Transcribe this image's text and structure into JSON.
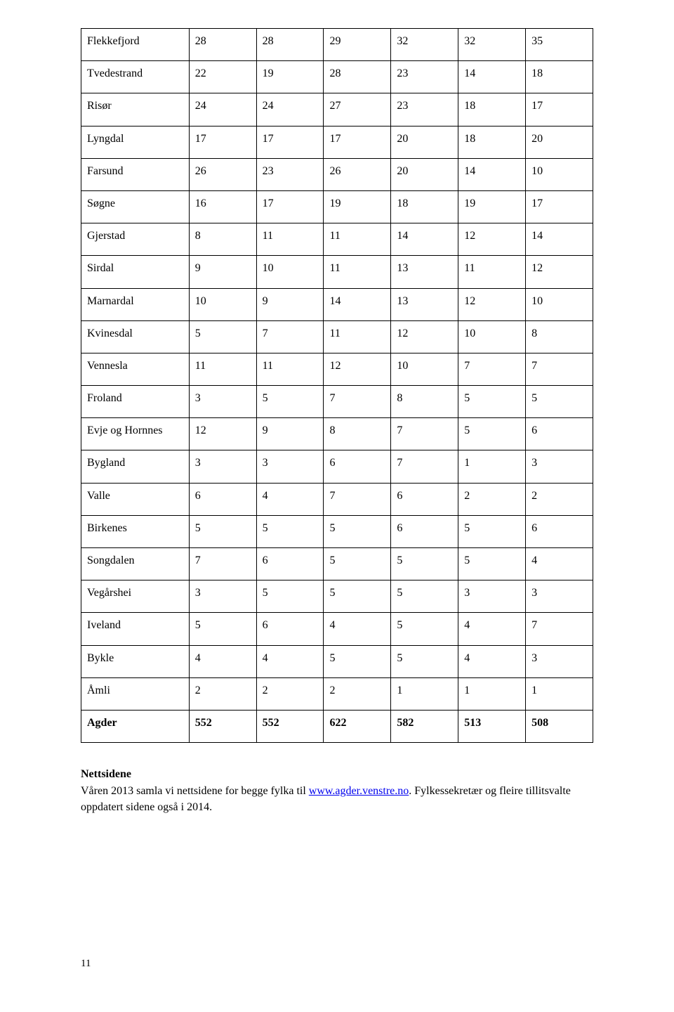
{
  "table": {
    "columns": [
      "label",
      "c1",
      "c2",
      "c3",
      "c4",
      "c5",
      "c6"
    ],
    "rows": [
      [
        "Flekkefjord",
        "28",
        "28",
        "29",
        "32",
        "32",
        "35"
      ],
      [
        "Tvedestrand",
        "22",
        "19",
        "28",
        "23",
        "14",
        "18"
      ],
      [
        "Risør",
        "24",
        "24",
        "27",
        "23",
        "18",
        "17"
      ],
      [
        "Lyngdal",
        "17",
        "17",
        "17",
        "20",
        "18",
        "20"
      ],
      [
        "Farsund",
        "26",
        "23",
        "26",
        "20",
        "14",
        "10"
      ],
      [
        "Søgne",
        "16",
        "17",
        "19",
        "18",
        "19",
        "17"
      ],
      [
        "Gjerstad",
        "8",
        "11",
        "11",
        "14",
        "12",
        "14"
      ],
      [
        "Sirdal",
        "9",
        "10",
        "11",
        "13",
        "11",
        "12"
      ],
      [
        "Marnardal",
        "10",
        "9",
        "14",
        "13",
        "12",
        "10"
      ],
      [
        "Kvinesdal",
        "5",
        "7",
        "11",
        "12",
        "10",
        "8"
      ],
      [
        "Vennesla",
        "11",
        "11",
        "12",
        "10",
        "7",
        "7"
      ],
      [
        "Froland",
        "3",
        "5",
        "7",
        "8",
        "5",
        "5"
      ],
      [
        "Evje og Hornnes",
        "12",
        "9",
        "8",
        "7",
        "5",
        "6"
      ],
      [
        "Bygland",
        "3",
        "3",
        "6",
        "7",
        "1",
        "3"
      ],
      [
        "Valle",
        "6",
        "4",
        "7",
        "6",
        "2",
        "2"
      ],
      [
        "Birkenes",
        "5",
        "5",
        "5",
        "6",
        "5",
        "6"
      ],
      [
        "Songdalen",
        "7",
        "6",
        "5",
        "5",
        "5",
        "4"
      ],
      [
        "Vegårshei",
        "3",
        "5",
        "5",
        "5",
        "3",
        "3"
      ],
      [
        "Iveland",
        "5",
        "6",
        "4",
        "5",
        "4",
        "7"
      ],
      [
        "Bykle",
        "4",
        "4",
        "5",
        "5",
        "4",
        "3"
      ],
      [
        "Åmli",
        "2",
        "2",
        "2",
        "1",
        "1",
        "1"
      ]
    ],
    "total_row": [
      "Agder",
      "552",
      "552",
      "622",
      "582",
      "513",
      "508"
    ]
  },
  "section": {
    "heading": "Nettsidene",
    "para_part1": "Våren 2013 samla vi nettsidene for begge fylka til ",
    "link_text": "www.agder.venstre.no",
    "para_part2": ". Fylkessekretær og fleire tillitsvalte oppdatert sidene også i 2014."
  },
  "page_number": "11"
}
